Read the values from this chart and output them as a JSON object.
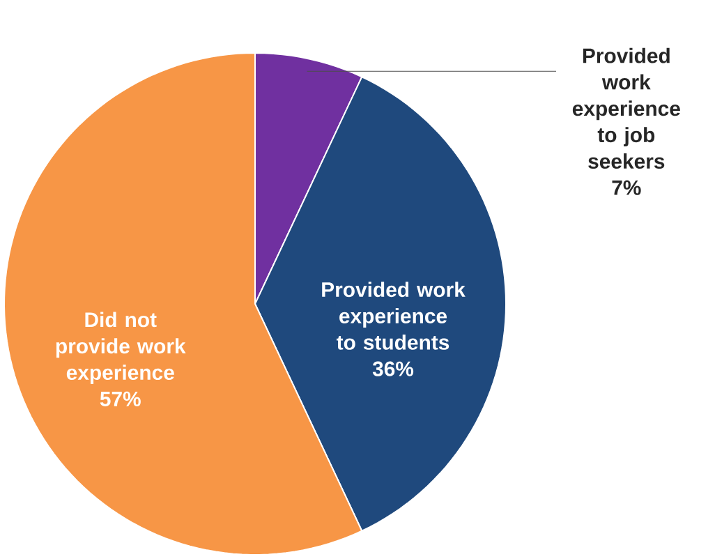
{
  "chart_data": {
    "type": "pie",
    "categories": [
      "Provided work experience to job seekers",
      "Provided work experience to students",
      "Did not provide work experience"
    ],
    "values": [
      7,
      36,
      57
    ],
    "colors": [
      "#7030a0",
      "#1f497d",
      "#f79646"
    ],
    "value_labels": [
      "7%",
      "36%",
      "57%"
    ]
  }
}
